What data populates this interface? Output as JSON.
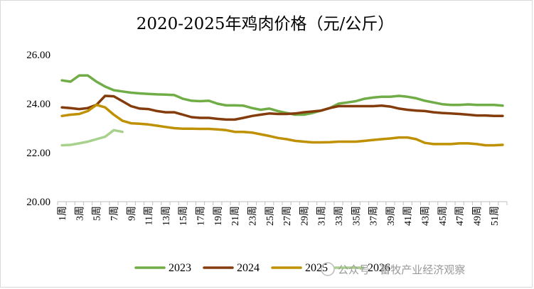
{
  "chart_data": {
    "type": "line",
    "title": "2020-2025年鸡肉价格（元/公斤）",
    "xlabel": "",
    "ylabel": "",
    "ylim": [
      20,
      26
    ],
    "y_ticks": [
      "20.00",
      "22.00",
      "24.00",
      "26.00"
    ],
    "x_ticks": [
      "1周",
      "3周",
      "5周",
      "7周",
      "9周",
      "11周",
      "13周",
      "15周",
      "17周",
      "19周",
      "21周",
      "23周",
      "25周",
      "27周",
      "29周",
      "31周",
      "33周",
      "35周",
      "37周",
      "39周",
      "41周",
      "43周",
      "45周",
      "47周",
      "49周",
      "51周"
    ],
    "categories_count": 52,
    "grid": false,
    "legend_position": "bottom",
    "series": [
      {
        "name": "2023",
        "color": "#70ad47",
        "values": [
          24.95,
          24.9,
          25.15,
          25.15,
          24.9,
          24.7,
          24.55,
          24.5,
          24.45,
          24.42,
          24.4,
          24.38,
          24.37,
          24.35,
          24.2,
          24.12,
          24.1,
          24.12,
          24.0,
          23.93,
          23.93,
          23.92,
          23.82,
          23.75,
          23.8,
          23.7,
          23.62,
          23.55,
          23.55,
          23.62,
          23.72,
          23.82,
          24.0,
          24.05,
          24.1,
          24.2,
          24.25,
          24.28,
          24.28,
          24.32,
          24.28,
          24.22,
          24.12,
          24.05,
          23.98,
          23.95,
          23.95,
          23.97,
          23.95,
          23.95,
          23.95,
          23.92
        ]
      },
      {
        "name": "2024",
        "color": "#843c0c",
        "values": [
          23.85,
          23.82,
          23.78,
          23.82,
          23.95,
          24.32,
          24.3,
          24.1,
          23.9,
          23.8,
          23.78,
          23.7,
          23.65,
          23.65,
          23.55,
          23.45,
          23.42,
          23.42,
          23.38,
          23.35,
          23.35,
          23.42,
          23.5,
          23.55,
          23.6,
          23.58,
          23.58,
          23.6,
          23.65,
          23.68,
          23.72,
          23.82,
          23.9,
          23.9,
          23.9,
          23.9,
          23.9,
          23.92,
          23.88,
          23.8,
          23.75,
          23.72,
          23.7,
          23.65,
          23.62,
          23.6,
          23.58,
          23.55,
          23.52,
          23.52,
          23.5,
          23.5
        ]
      },
      {
        "name": "2025",
        "color": "#bf9000",
        "values": [
          23.5,
          23.55,
          23.58,
          23.7,
          23.95,
          23.85,
          23.55,
          23.3,
          23.2,
          23.18,
          23.15,
          23.1,
          23.05,
          23.0,
          22.98,
          22.98,
          22.97,
          22.97,
          22.95,
          22.92,
          22.85,
          22.85,
          22.82,
          22.75,
          22.68,
          22.6,
          22.55,
          22.48,
          22.45,
          22.42,
          22.42,
          22.43,
          22.45,
          22.45,
          22.45,
          22.48,
          22.52,
          22.55,
          22.58,
          22.62,
          22.62,
          22.55,
          22.4,
          22.35,
          22.35,
          22.35,
          22.38,
          22.38,
          22.35,
          22.3,
          22.3,
          22.32
        ]
      },
      {
        "name": "2026",
        "color": "#a9d18e",
        "values": [
          22.3,
          22.32,
          22.38,
          22.45,
          22.55,
          22.65,
          22.92,
          22.85
        ]
      }
    ]
  },
  "watermark": "公众号 · 畜牧产业经济观察"
}
